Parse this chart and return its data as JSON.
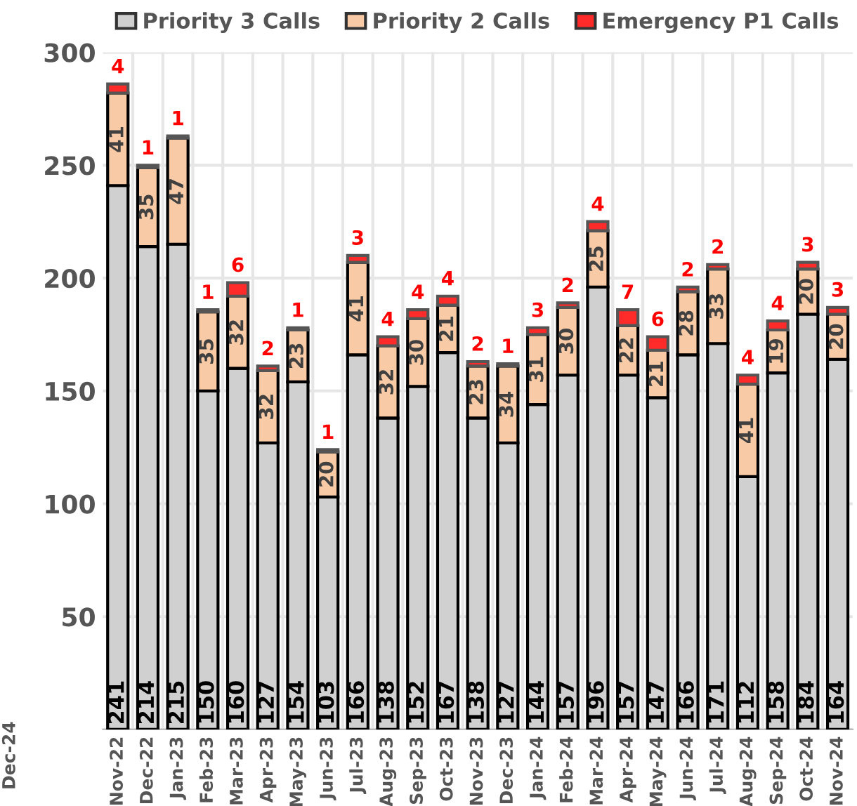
{
  "chart_data": {
    "type": "bar",
    "stacked": true,
    "data_labels": true,
    "grid": true,
    "legend": "top",
    "categories": [
      "Nov-22",
      "Dec-22",
      "Jan-23",
      "Feb-23",
      "Mar-23",
      "Apr-23",
      "May-23",
      "Jun-23",
      "Jul-23",
      "Aug-23",
      "Sep-23",
      "Oct-23",
      "Nov-23",
      "Dec-23",
      "Jan-24",
      "Feb-24",
      "Mar-24",
      "Apr-24",
      "May-24",
      "Jun-24",
      "Jul-24",
      "Aug-24",
      "Sep-24",
      "Oct-24",
      "Nov-24"
    ],
    "series": [
      {
        "name": "Priority 3 Calls",
        "color": "#d0d0d0",
        "values": [
          241,
          214,
          215,
          150,
          160,
          127,
          154,
          103,
          166,
          138,
          152,
          167,
          138,
          127,
          144,
          157,
          196,
          157,
          147,
          166,
          171,
          112,
          158,
          184,
          164
        ]
      },
      {
        "name": "Priority 2 Calls",
        "color": "#f8cba6",
        "values": [
          41,
          35,
          47,
          35,
          32,
          32,
          23,
          20,
          41,
          32,
          30,
          21,
          23,
          34,
          31,
          30,
          25,
          22,
          21,
          28,
          33,
          41,
          19,
          20,
          20
        ]
      },
      {
        "name": "Emergency P1 Calls",
        "color": "#ff2a2a",
        "values": [
          4,
          1,
          1,
          1,
          6,
          2,
          1,
          1,
          3,
          4,
          4,
          4,
          2,
          1,
          3,
          2,
          4,
          7,
          6,
          2,
          2,
          4,
          4,
          3,
          3
        ]
      }
    ],
    "ylim": [
      0,
      300
    ],
    "yticks": [
      {
        "value": 0,
        "label": null
      },
      50,
      100,
      150,
      200,
      250,
      300
    ],
    "annotations": [
      "Dec-24"
    ]
  }
}
